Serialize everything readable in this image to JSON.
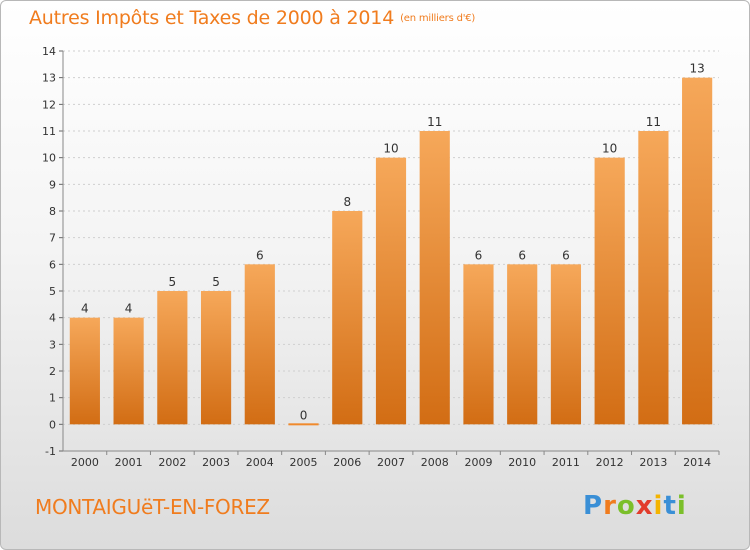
{
  "header": {
    "title": "Autres Impôts et Taxes de 2000 à 2014",
    "unit": "(en milliers d'€)"
  },
  "footer": {
    "city": "MONTAIGUëT-EN-FOREZ",
    "logo_letters": [
      "P",
      "r",
      "o",
      "x",
      "i",
      "t",
      "i"
    ],
    "logo_colors": [
      "#3a8fd6",
      "#f07c1e",
      "#7bbf2a",
      "#e23c2c",
      "#f4b400",
      "#3a8fd6",
      "#7bbf2a"
    ]
  },
  "chart_data": {
    "type": "bar",
    "title": "Autres Impôts et Taxes de 2000 à 2014",
    "xlabel": "",
    "ylabel": "",
    "categories": [
      "2000",
      "2001",
      "2002",
      "2003",
      "2004",
      "2005",
      "2006",
      "2007",
      "2008",
      "2009",
      "2010",
      "2011",
      "2012",
      "2013",
      "2014"
    ],
    "values": [
      4,
      4,
      5,
      5,
      6,
      0,
      8,
      10,
      11,
      6,
      6,
      6,
      10,
      11,
      13
    ],
    "value_labels": [
      "4",
      "4",
      "5",
      "5",
      "6",
      "0",
      "8",
      "10",
      "11",
      "6",
      "6",
      "6",
      "10",
      "11",
      "13"
    ],
    "ylim": [
      -1,
      14
    ],
    "yticks": [
      "-1",
      "0",
      "1",
      "2",
      "3",
      "4",
      "5",
      "6",
      "7",
      "8",
      "9",
      "10",
      "11",
      "12",
      "13",
      "14"
    ],
    "grid": true,
    "legend": "none",
    "bar_color": "#f08a2c",
    "bar_color_light": "#f6a85a",
    "bar_color_dark": "#d26d14"
  }
}
